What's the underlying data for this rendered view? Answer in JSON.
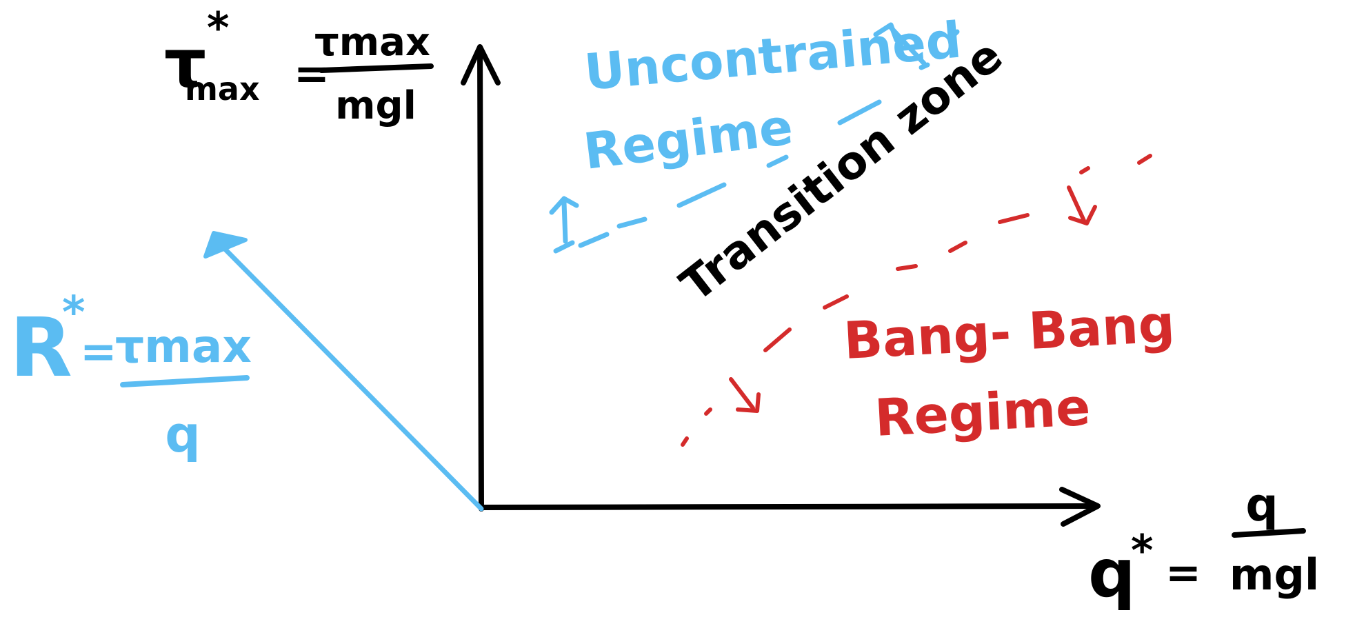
{
  "colors": {
    "ink": "#000000",
    "blue": "#5bbcf2",
    "red": "#d42b2b",
    "background": "#ffffff"
  },
  "y_axis": {
    "symbol": "τ",
    "subscript": "max",
    "superscript": "*",
    "equals": "=",
    "numerator": "τmax",
    "denominator": "mgl"
  },
  "x_axis": {
    "symbol": "q",
    "superscript": "*",
    "equals": "=",
    "numerator": "q",
    "denominator": "mgl"
  },
  "ratio_label": {
    "symbol": "R",
    "superscript": "*",
    "equals": "=",
    "numerator": "τmax",
    "denominator": "q"
  },
  "regions": {
    "unconstrained_line1": "Uncontrained",
    "unconstrained_line2": "Regime",
    "transition": "Transition zone",
    "bang_bang_line1": "Bang- Bang",
    "bang_bang_line2": "Regime"
  }
}
